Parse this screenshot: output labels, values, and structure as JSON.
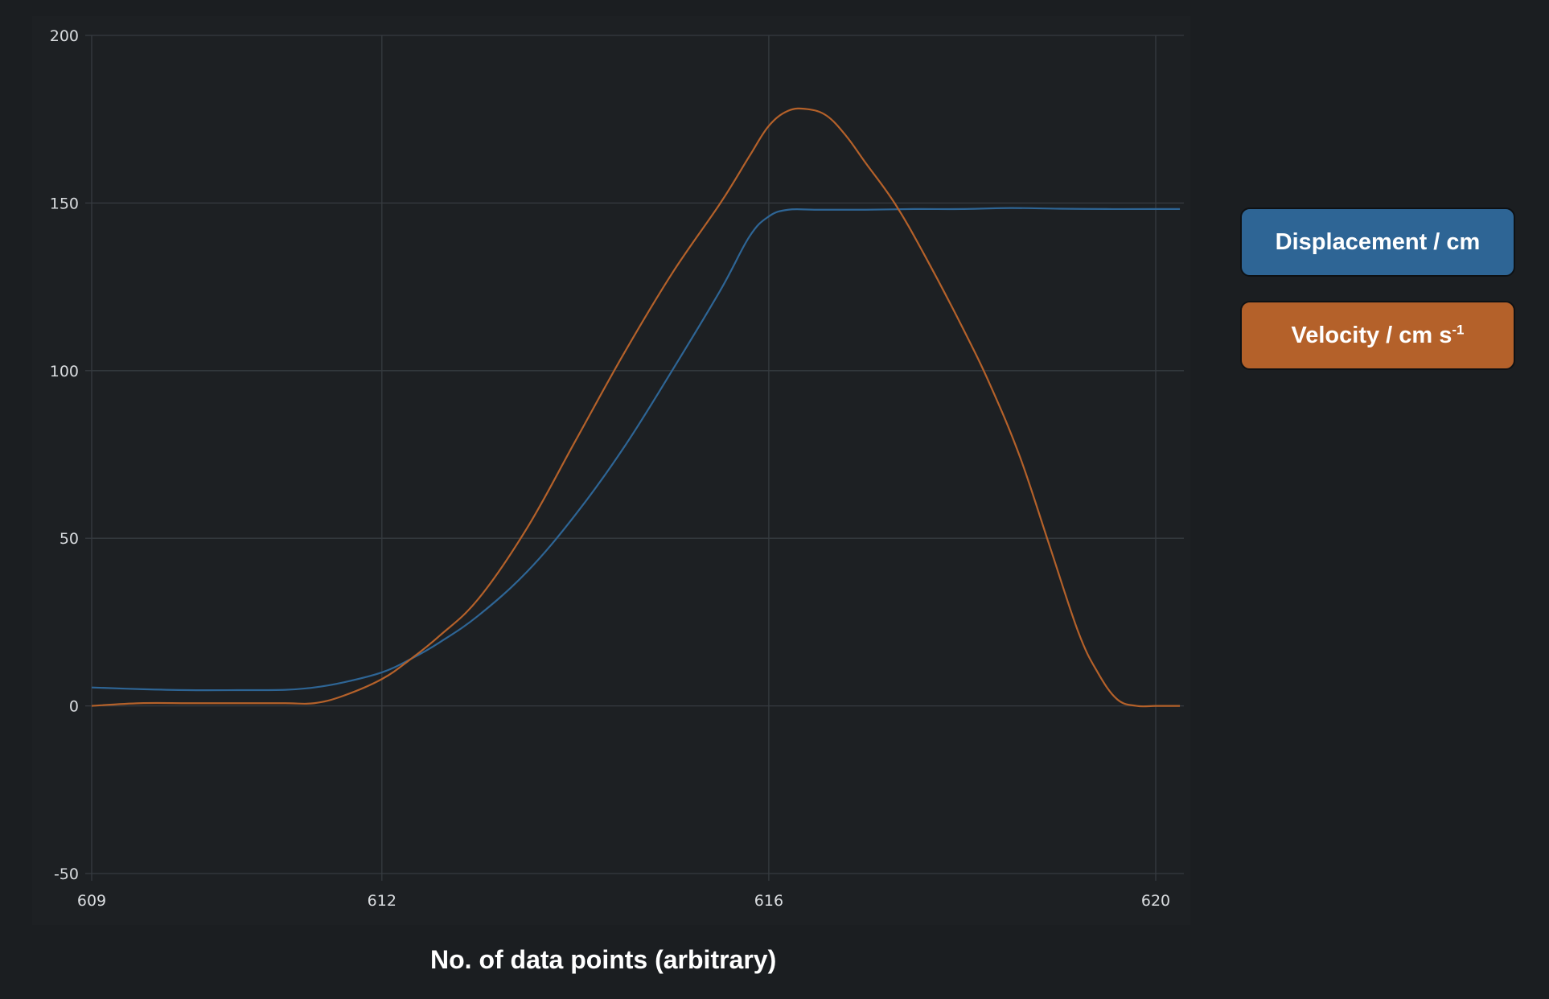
{
  "colors": {
    "background": "#1b1e21",
    "grid": "#363b40",
    "displacement": "#2e6595",
    "velocity": "#b4612a"
  },
  "legend": {
    "displacement_label": "Displacement / cm",
    "velocity_label": "Velocity / cm s",
    "velocity_sup": "-1"
  },
  "chart_data": {
    "type": "line",
    "title": "",
    "xlabel": "No. of data points (arbitrary)",
    "ylabel": "",
    "xlim": [
      609,
      620.25
    ],
    "ylim": [
      -50,
      200
    ],
    "xticks": [
      609,
      612,
      616,
      620
    ],
    "yticks": [
      -50,
      0,
      50,
      100,
      150,
      200
    ],
    "grid": true,
    "legend_position": "right",
    "series": [
      {
        "name": "Displacement / cm",
        "color": "#2e6595",
        "x": [
          609,
          609.5,
          610,
          610.5,
          611,
          611.3,
          611.6,
          612,
          612.3,
          612.6,
          613,
          613.5,
          614,
          614.5,
          615,
          615.5,
          615.8,
          616,
          616.2,
          616.5,
          617,
          617.5,
          618,
          618.5,
          619,
          619.5,
          620,
          620.25
        ],
        "y": [
          5.5,
          5,
          4.7,
          4.7,
          4.8,
          5.5,
          7,
          10,
          14,
          19,
          27,
          40,
          57,
          77,
          100,
          124,
          140,
          146,
          148,
          148,
          148,
          148.2,
          148.2,
          148.5,
          148.3,
          148.2,
          148.2,
          148.2
        ]
      },
      {
        "name": "Velocity / cm s-1",
        "color": "#b4612a",
        "x": [
          609,
          609.5,
          610,
          610.5,
          611,
          611.3,
          611.6,
          612,
          612.3,
          612.6,
          613,
          613.5,
          614,
          614.5,
          615,
          615.5,
          615.8,
          616,
          616.2,
          616.4,
          616.6,
          616.8,
          617,
          617.3,
          617.6,
          618,
          618.3,
          618.6,
          618.9,
          619.2,
          619.4,
          619.6,
          619.8,
          620,
          620.25
        ],
        "y": [
          0,
          0.8,
          0.8,
          0.8,
          0.8,
          0.8,
          3,
          8,
          14,
          21,
          32,
          53,
          79,
          105,
          129,
          150,
          164,
          173,
          177.5,
          178,
          176,
          170,
          162,
          150,
          135,
          113,
          95,
          74,
          48,
          22,
          10,
          2,
          0,
          0,
          0
        ]
      }
    ]
  }
}
